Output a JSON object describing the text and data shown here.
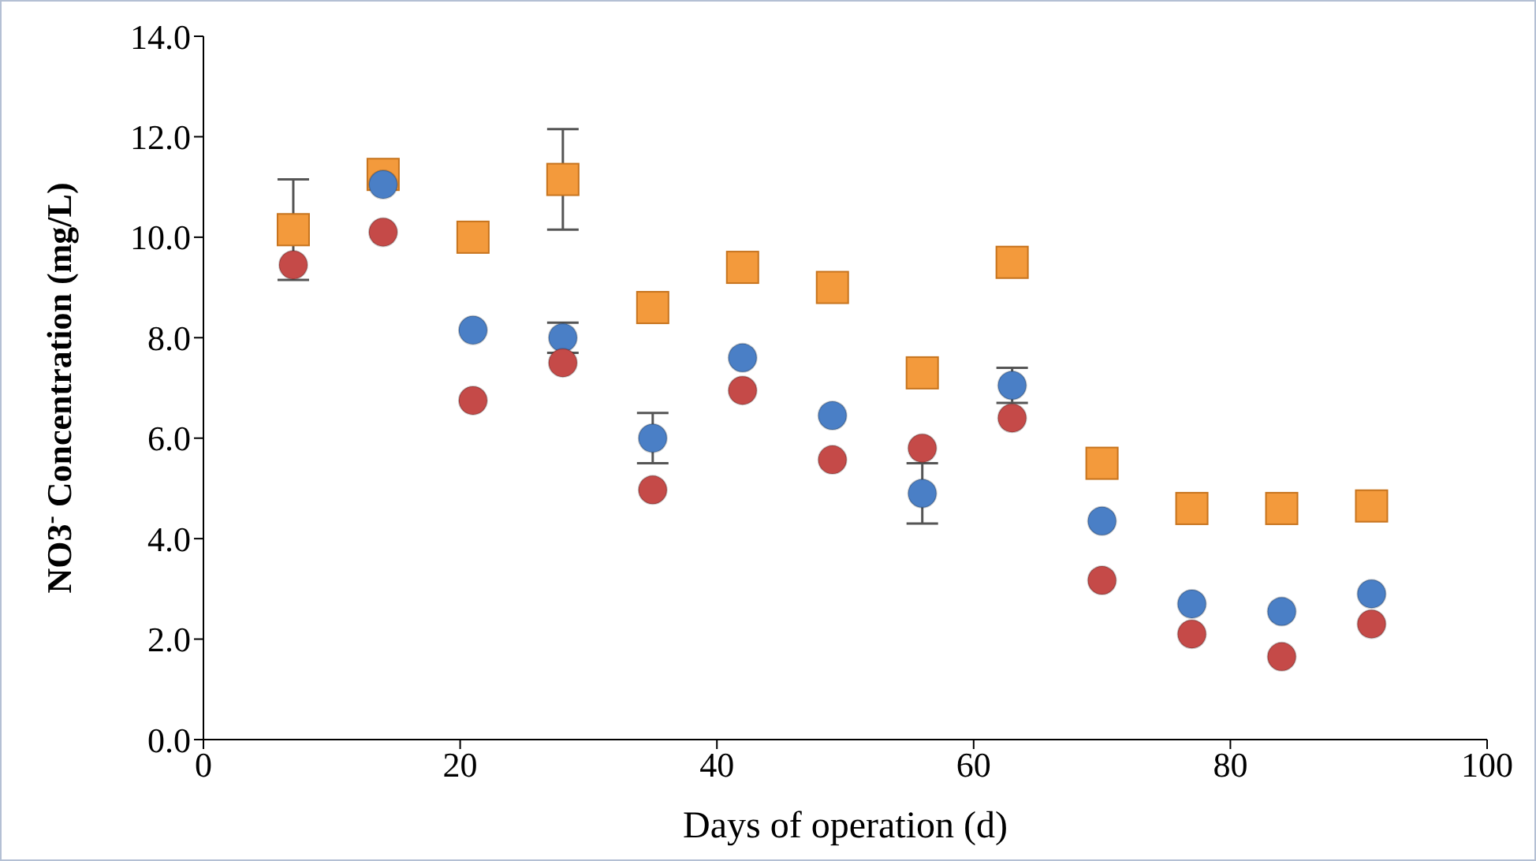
{
  "chart_data": {
    "type": "scatter",
    "xlabel": "Days of operation (d)",
    "ylabel": "NO3$^{-}$ Concentration (mg/L)",
    "xlim": [
      0,
      100
    ],
    "xticks": [
      0,
      20,
      40,
      60,
      80,
      100
    ],
    "ylim": [
      0,
      14
    ],
    "yticks": [
      {
        "value": 0,
        "label": "0.0"
      },
      {
        "value": 2,
        "label": "2.0"
      },
      {
        "value": 4,
        "label": "4.0"
      },
      {
        "value": 6,
        "label": "6.0"
      },
      {
        "value": 8,
        "label": "8.0"
      },
      {
        "value": 10,
        "label": "10.0"
      },
      {
        "value": 12,
        "label": "12.0"
      },
      {
        "value": 14,
        "label": "14.0"
      }
    ],
    "grid": false,
    "x": [
      7,
      14,
      21,
      28,
      35,
      42,
      49,
      56,
      63,
      70,
      77,
      84,
      91
    ],
    "series": [
      {
        "color": "#f39a3c",
        "marker": "square",
        "values": [
          10.15,
          11.25,
          10.0,
          11.15,
          8.6,
          9.4,
          9.0,
          7.3,
          9.5,
          5.5,
          4.6,
          4.6,
          4.65
        ],
        "errors": [
          1.0,
          null,
          null,
          1.0,
          null,
          null,
          null,
          null,
          null,
          null,
          null,
          null,
          null
        ]
      },
      {
        "color": "#4a7fc6",
        "marker": "circle",
        "values": [
          null,
          11.05,
          8.15,
          8.0,
          6.0,
          7.6,
          6.45,
          4.9,
          7.05,
          4.35,
          2.7,
          2.55,
          2.9
        ],
        "errors": [
          null,
          null,
          null,
          0.3,
          0.5,
          null,
          null,
          0.6,
          0.35,
          null,
          null,
          null,
          null
        ]
      },
      {
        "color": "#c54a48",
        "marker": "circle",
        "values": [
          9.45,
          10.1,
          6.75,
          7.5,
          4.97,
          6.95,
          5.57,
          5.8,
          6.4,
          3.17,
          2.1,
          1.65,
          2.3
        ]
      }
    ]
  }
}
